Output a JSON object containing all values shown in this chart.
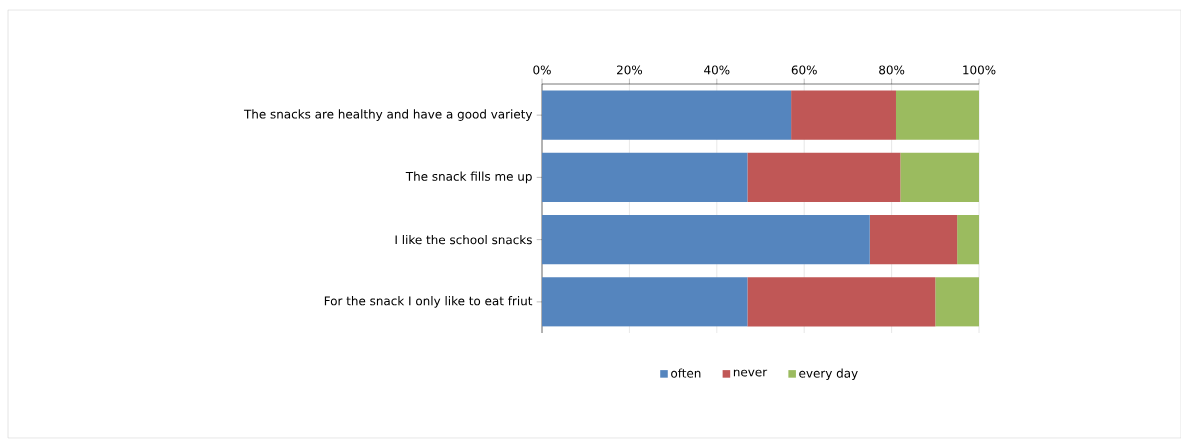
{
  "chart_data": {
    "type": "bar",
    "orientation": "horizontal",
    "stacked": true,
    "categories": [
      "The snacks are healthy and have a good variety",
      "The snack fills me up",
      "I like the school snacks",
      "For the snack I only like to eat friut"
    ],
    "series": [
      {
        "name": "often",
        "color": "#5585be",
        "values": [
          57,
          47,
          75,
          47
        ]
      },
      {
        "name": "never",
        "color": "#c05756",
        "values": [
          24,
          35,
          20,
          43
        ]
      },
      {
        "name": "every day",
        "color": "#9bbb5f",
        "values": [
          19,
          18,
          5,
          10
        ]
      }
    ],
    "xlim": [
      0,
      100
    ],
    "xticks": [
      {
        "value": 0,
        "label": "0%"
      },
      {
        "value": 20,
        "label": "20%"
      },
      {
        "value": 40,
        "label": "40%"
      },
      {
        "value": 60,
        "label": "60%"
      },
      {
        "value": 80,
        "label": "80%"
      },
      {
        "value": 100,
        "label": "100%"
      }
    ],
    "grid": "x",
    "legend": "bottom"
  }
}
